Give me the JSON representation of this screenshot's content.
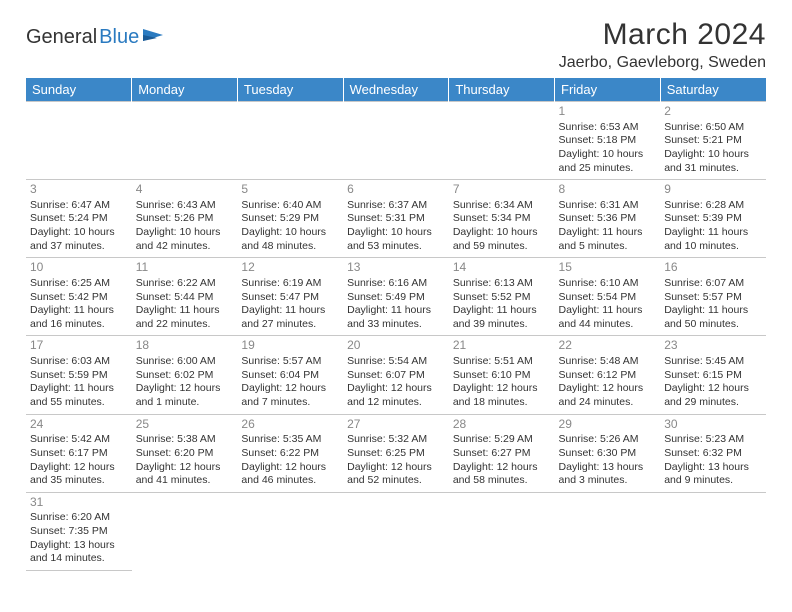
{
  "brand": {
    "name1": "General",
    "name2": "Blue"
  },
  "title": "March 2024",
  "location": "Jaerbo, Gaevleborg, Sweden",
  "colors": {
    "header_bg": "#3b87c8",
    "header_fg": "#ffffff",
    "border": "#c8c8c8",
    "daynum": "#888888",
    "text": "#333333",
    "brand_blue": "#2a7ac0"
  },
  "day_headers": [
    "Sunday",
    "Monday",
    "Tuesday",
    "Wednesday",
    "Thursday",
    "Friday",
    "Saturday"
  ],
  "weeks": [
    [
      null,
      null,
      null,
      null,
      null,
      {
        "n": "1",
        "sr": "Sunrise: 6:53 AM",
        "ss": "Sunset: 5:18 PM",
        "d1": "Daylight: 10 hours",
        "d2": "and 25 minutes."
      },
      {
        "n": "2",
        "sr": "Sunrise: 6:50 AM",
        "ss": "Sunset: 5:21 PM",
        "d1": "Daylight: 10 hours",
        "d2": "and 31 minutes."
      }
    ],
    [
      {
        "n": "3",
        "sr": "Sunrise: 6:47 AM",
        "ss": "Sunset: 5:24 PM",
        "d1": "Daylight: 10 hours",
        "d2": "and 37 minutes."
      },
      {
        "n": "4",
        "sr": "Sunrise: 6:43 AM",
        "ss": "Sunset: 5:26 PM",
        "d1": "Daylight: 10 hours",
        "d2": "and 42 minutes."
      },
      {
        "n": "5",
        "sr": "Sunrise: 6:40 AM",
        "ss": "Sunset: 5:29 PM",
        "d1": "Daylight: 10 hours",
        "d2": "and 48 minutes."
      },
      {
        "n": "6",
        "sr": "Sunrise: 6:37 AM",
        "ss": "Sunset: 5:31 PM",
        "d1": "Daylight: 10 hours",
        "d2": "and 53 minutes."
      },
      {
        "n": "7",
        "sr": "Sunrise: 6:34 AM",
        "ss": "Sunset: 5:34 PM",
        "d1": "Daylight: 10 hours",
        "d2": "and 59 minutes."
      },
      {
        "n": "8",
        "sr": "Sunrise: 6:31 AM",
        "ss": "Sunset: 5:36 PM",
        "d1": "Daylight: 11 hours",
        "d2": "and 5 minutes."
      },
      {
        "n": "9",
        "sr": "Sunrise: 6:28 AM",
        "ss": "Sunset: 5:39 PM",
        "d1": "Daylight: 11 hours",
        "d2": "and 10 minutes."
      }
    ],
    [
      {
        "n": "10",
        "sr": "Sunrise: 6:25 AM",
        "ss": "Sunset: 5:42 PM",
        "d1": "Daylight: 11 hours",
        "d2": "and 16 minutes."
      },
      {
        "n": "11",
        "sr": "Sunrise: 6:22 AM",
        "ss": "Sunset: 5:44 PM",
        "d1": "Daylight: 11 hours",
        "d2": "and 22 minutes."
      },
      {
        "n": "12",
        "sr": "Sunrise: 6:19 AM",
        "ss": "Sunset: 5:47 PM",
        "d1": "Daylight: 11 hours",
        "d2": "and 27 minutes."
      },
      {
        "n": "13",
        "sr": "Sunrise: 6:16 AM",
        "ss": "Sunset: 5:49 PM",
        "d1": "Daylight: 11 hours",
        "d2": "and 33 minutes."
      },
      {
        "n": "14",
        "sr": "Sunrise: 6:13 AM",
        "ss": "Sunset: 5:52 PM",
        "d1": "Daylight: 11 hours",
        "d2": "and 39 minutes."
      },
      {
        "n": "15",
        "sr": "Sunrise: 6:10 AM",
        "ss": "Sunset: 5:54 PM",
        "d1": "Daylight: 11 hours",
        "d2": "and 44 minutes."
      },
      {
        "n": "16",
        "sr": "Sunrise: 6:07 AM",
        "ss": "Sunset: 5:57 PM",
        "d1": "Daylight: 11 hours",
        "d2": "and 50 minutes."
      }
    ],
    [
      {
        "n": "17",
        "sr": "Sunrise: 6:03 AM",
        "ss": "Sunset: 5:59 PM",
        "d1": "Daylight: 11 hours",
        "d2": "and 55 minutes."
      },
      {
        "n": "18",
        "sr": "Sunrise: 6:00 AM",
        "ss": "Sunset: 6:02 PM",
        "d1": "Daylight: 12 hours",
        "d2": "and 1 minute."
      },
      {
        "n": "19",
        "sr": "Sunrise: 5:57 AM",
        "ss": "Sunset: 6:04 PM",
        "d1": "Daylight: 12 hours",
        "d2": "and 7 minutes."
      },
      {
        "n": "20",
        "sr": "Sunrise: 5:54 AM",
        "ss": "Sunset: 6:07 PM",
        "d1": "Daylight: 12 hours",
        "d2": "and 12 minutes."
      },
      {
        "n": "21",
        "sr": "Sunrise: 5:51 AM",
        "ss": "Sunset: 6:10 PM",
        "d1": "Daylight: 12 hours",
        "d2": "and 18 minutes."
      },
      {
        "n": "22",
        "sr": "Sunrise: 5:48 AM",
        "ss": "Sunset: 6:12 PM",
        "d1": "Daylight: 12 hours",
        "d2": "and 24 minutes."
      },
      {
        "n": "23",
        "sr": "Sunrise: 5:45 AM",
        "ss": "Sunset: 6:15 PM",
        "d1": "Daylight: 12 hours",
        "d2": "and 29 minutes."
      }
    ],
    [
      {
        "n": "24",
        "sr": "Sunrise: 5:42 AM",
        "ss": "Sunset: 6:17 PM",
        "d1": "Daylight: 12 hours",
        "d2": "and 35 minutes."
      },
      {
        "n": "25",
        "sr": "Sunrise: 5:38 AM",
        "ss": "Sunset: 6:20 PM",
        "d1": "Daylight: 12 hours",
        "d2": "and 41 minutes."
      },
      {
        "n": "26",
        "sr": "Sunrise: 5:35 AM",
        "ss": "Sunset: 6:22 PM",
        "d1": "Daylight: 12 hours",
        "d2": "and 46 minutes."
      },
      {
        "n": "27",
        "sr": "Sunrise: 5:32 AM",
        "ss": "Sunset: 6:25 PM",
        "d1": "Daylight: 12 hours",
        "d2": "and 52 minutes."
      },
      {
        "n": "28",
        "sr": "Sunrise: 5:29 AM",
        "ss": "Sunset: 6:27 PM",
        "d1": "Daylight: 12 hours",
        "d2": "and 58 minutes."
      },
      {
        "n": "29",
        "sr": "Sunrise: 5:26 AM",
        "ss": "Sunset: 6:30 PM",
        "d1": "Daylight: 13 hours",
        "d2": "and 3 minutes."
      },
      {
        "n": "30",
        "sr": "Sunrise: 5:23 AM",
        "ss": "Sunset: 6:32 PM",
        "d1": "Daylight: 13 hours",
        "d2": "and 9 minutes."
      }
    ],
    [
      {
        "n": "31",
        "sr": "Sunrise: 6:20 AM",
        "ss": "Sunset: 7:35 PM",
        "d1": "Daylight: 13 hours",
        "d2": "and 14 minutes."
      },
      null,
      null,
      null,
      null,
      null,
      null
    ]
  ]
}
